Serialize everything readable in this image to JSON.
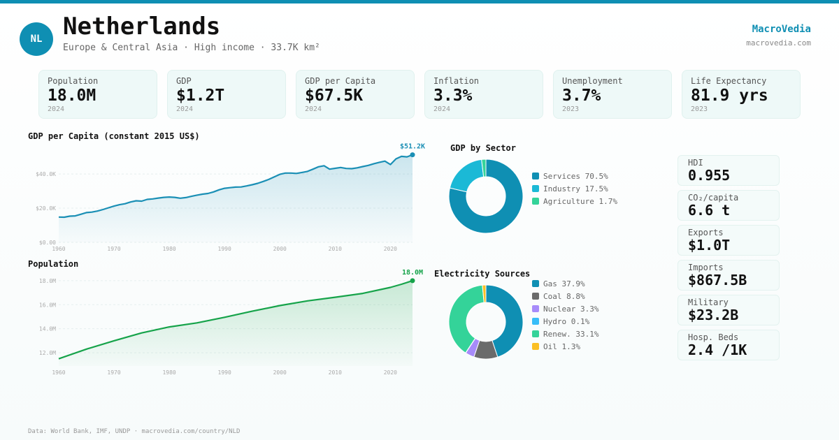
{
  "header": {
    "code": "NL",
    "country": "Netherlands",
    "subtitle": "Europe & Central Asia · High income · 33.7K km²",
    "brand": "MacroVedia",
    "brand_url": "macrovedia.com"
  },
  "kpis": [
    {
      "label": "Population",
      "value": "18.0M",
      "year": "2024"
    },
    {
      "label": "GDP",
      "value": "$1.2T",
      "year": "2024"
    },
    {
      "label": "GDP per Capita",
      "value": "$67.5K",
      "year": "2024"
    },
    {
      "label": "Inflation",
      "value": "3.3%",
      "year": "2024"
    },
    {
      "label": "Unemployment",
      "value": "3.7%",
      "year": "2023"
    },
    {
      "label": "Life Expectancy",
      "value": "81.9 yrs",
      "year": "2023"
    }
  ],
  "side_stats": [
    {
      "label": "HDI",
      "value": "0.955"
    },
    {
      "label": "CO₂/capita",
      "value": "6.6 t"
    },
    {
      "label": "Exports",
      "value": "$1.0T"
    },
    {
      "label": "Imports",
      "value": "$867.5B"
    },
    {
      "label": "Military",
      "value": "$23.2B"
    },
    {
      "label": "Hosp. Beds",
      "value": "2.4 /1K"
    }
  ],
  "footer": "Data: World Bank, IMF, UNDP · macrovedia.com/country/NLD",
  "colors": {
    "accent": "#0f8fb3",
    "population": "#16a34a"
  },
  "chart_data": [
    {
      "type": "area",
      "title": "GDP per Capita (constant 2015 US$)",
      "end_label": "$51.2K",
      "x_ticks": [
        1960,
        1970,
        1980,
        1990,
        2000,
        2010,
        2020
      ],
      "y_ticks": [
        {
          "v": 0,
          "label": "$0.00"
        },
        {
          "v": 20000,
          "label": "$20.0K"
        },
        {
          "v": 40000,
          "label": "$40.0K"
        }
      ],
      "xlim": [
        1960,
        2024
      ],
      "ylim": [
        0,
        58000
      ],
      "x": [
        1960,
        1961,
        1962,
        1963,
        1964,
        1965,
        1966,
        1967,
        1968,
        1969,
        1970,
        1971,
        1972,
        1973,
        1974,
        1975,
        1976,
        1977,
        1978,
        1979,
        1980,
        1981,
        1982,
        1983,
        1984,
        1985,
        1986,
        1987,
        1988,
        1989,
        1990,
        1991,
        1992,
        1993,
        1994,
        1995,
        1996,
        1997,
        1998,
        1999,
        2000,
        2001,
        2002,
        2003,
        2004,
        2005,
        2006,
        2007,
        2008,
        2009,
        2010,
        2011,
        2012,
        2013,
        2014,
        2015,
        2016,
        2017,
        2018,
        2019,
        2020,
        2021,
        2022,
        2023,
        2024
      ],
      "y": [
        14800,
        14700,
        15300,
        15500,
        16400,
        17400,
        17700,
        18300,
        19200,
        20200,
        21200,
        22000,
        22600,
        23600,
        24300,
        24100,
        25100,
        25400,
        25900,
        26300,
        26500,
        26300,
        25800,
        26200,
        26900,
        27600,
        28200,
        28600,
        29500,
        30700,
        31600,
        32000,
        32300,
        32400,
        33000,
        33700,
        34500,
        35600,
        36800,
        38300,
        39800,
        40500,
        40500,
        40300,
        40900,
        41500,
        42800,
        44200,
        44800,
        42800,
        43300,
        43800,
        43200,
        43100,
        43600,
        44300,
        45000,
        46000,
        46800,
        47500,
        45500,
        48800,
        50300,
        50000,
        51200
      ],
      "colors": {
        "line": "#1a8fb5",
        "fill": "#1a8fb5"
      }
    },
    {
      "type": "area",
      "title": "Population",
      "end_label": "18.0M",
      "x_ticks": [
        1960,
        1970,
        1980,
        1990,
        2000,
        2010,
        2020
      ],
      "y_ticks": [
        {
          "v": 12000000,
          "label": "12.0M"
        },
        {
          "v": 14000000,
          "label": "14.0M"
        },
        {
          "v": 16000000,
          "label": "16.0M"
        },
        {
          "v": 18000000,
          "label": "18.0M"
        }
      ],
      "xlim": [
        1960,
        2024
      ],
      "ylim": [
        10900000,
        18400000
      ],
      "x": [
        1960,
        1965,
        1970,
        1975,
        1980,
        1985,
        1990,
        1995,
        2000,
        2005,
        2010,
        2015,
        2020,
        2022,
        2024
      ],
      "y": [
        11500000,
        12300000,
        13000000,
        13650000,
        14150000,
        14490000,
        14950000,
        15460000,
        15930000,
        16320000,
        16620000,
        16940000,
        17440000,
        17700000,
        18000000
      ],
      "colors": {
        "line": "#16a34a",
        "fill": "#16a34a"
      }
    },
    {
      "type": "pie",
      "title": "GDP by Sector",
      "labels": [
        "Services",
        "Industry",
        "Agriculture"
      ],
      "legend": [
        "Services 70.5%",
        "Industry 17.5%",
        "Agriculture 1.7%"
      ],
      "values": [
        70.5,
        17.5,
        1.7
      ],
      "colors": [
        "#0f8fb3",
        "#1bb9d6",
        "#34d399"
      ]
    },
    {
      "type": "pie",
      "title": "Electricity Sources",
      "labels": [
        "Gas",
        "Coal",
        "Nuclear",
        "Hydro",
        "Renew.",
        "Oil"
      ],
      "legend": [
        "Gas 37.9%",
        "Coal 8.8%",
        "Nuclear 3.3%",
        "Hydro 0.1%",
        "Renew. 33.1%",
        "Oil 1.3%"
      ],
      "values": [
        37.9,
        8.8,
        3.3,
        0.1,
        33.1,
        1.3
      ],
      "colors": [
        "#0f8fb3",
        "#6b6b6b",
        "#a78bfa",
        "#38bdf8",
        "#34d399",
        "#fbbf24"
      ]
    }
  ]
}
